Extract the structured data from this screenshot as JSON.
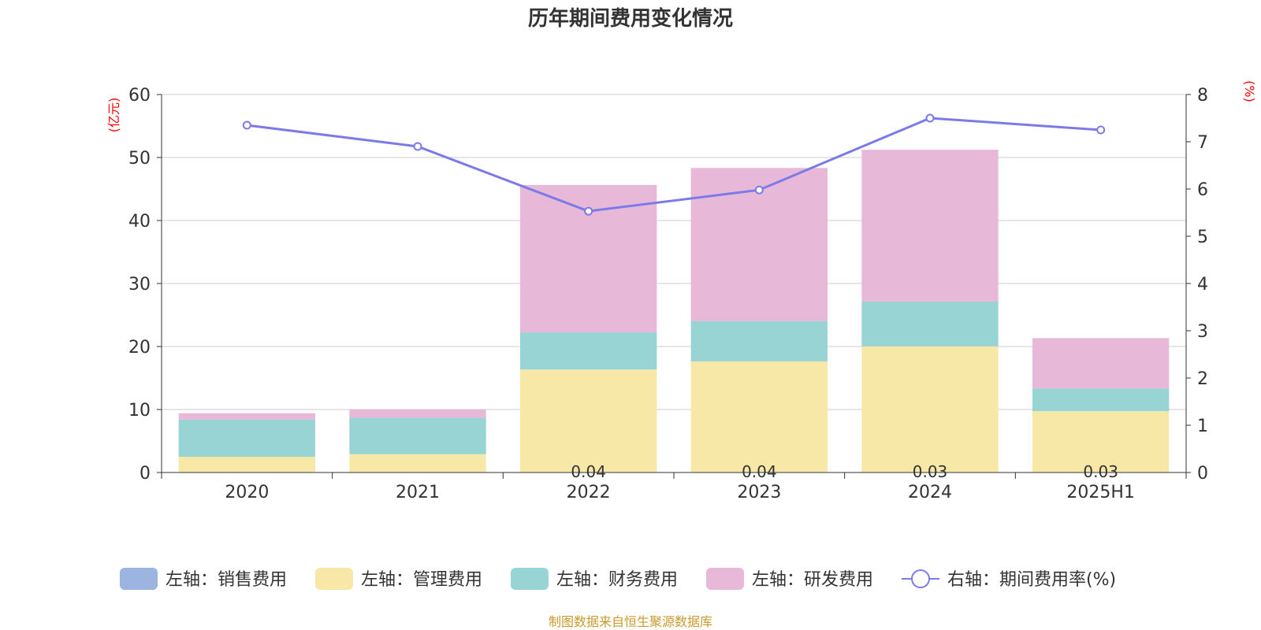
{
  "colors": {
    "sales": "#9bb5e0",
    "admin": "#f8e8a8",
    "finance": "#98d4d4",
    "rd": "#e7b8d8",
    "rate": "#7b7be8",
    "grid": "#cccccc",
    "axis": "#333333",
    "unit": "#ff0000",
    "source": "#c99a2e"
  },
  "chart_data": {
    "type": "bar",
    "title": "历年期间费用变化情况",
    "source_text": "制图数据来自恒生聚源数据库",
    "left_axis": {
      "unit_label": "(亿元)",
      "ylim": [
        0,
        60
      ],
      "ticks": [
        0,
        10,
        20,
        30,
        40,
        50,
        60
      ]
    },
    "right_axis": {
      "unit_label": "(%)",
      "ylim": [
        0,
        8
      ],
      "ticks": [
        0,
        1,
        2,
        3,
        4,
        5,
        6,
        7,
        8
      ]
    },
    "categories": [
      "2020",
      "2021",
      "2022",
      "2023",
      "2024",
      "2025H1"
    ],
    "series": [
      {
        "key": "sales",
        "name": "左轴：销售费用",
        "values": [
          0,
          0,
          0.04,
          0.04,
          0.03,
          0.03
        ]
      },
      {
        "key": "admin",
        "name": "左轴：管理费用",
        "values": [
          2.5,
          2.9,
          16.3,
          17.6,
          20.0,
          9.7
        ]
      },
      {
        "key": "finance",
        "name": "左轴：财务费用",
        "values": [
          5.9,
          5.8,
          5.9,
          6.4,
          7.1,
          3.6
        ]
      },
      {
        "key": "rd",
        "name": "左轴：研发费用",
        "values": [
          1.0,
          1.3,
          23.4,
          24.3,
          24.1,
          8.0
        ]
      }
    ],
    "line_series": {
      "key": "rate",
      "name": "右轴：期间费用率(%)",
      "values": [
        7.35,
        6.9,
        5.53,
        5.98,
        7.5,
        7.25
      ]
    },
    "bar_labels": [
      "",
      "",
      "0.04",
      "0.04",
      "0.03",
      "0.03"
    ],
    "grid": true,
    "legend_position": "bottom"
  }
}
